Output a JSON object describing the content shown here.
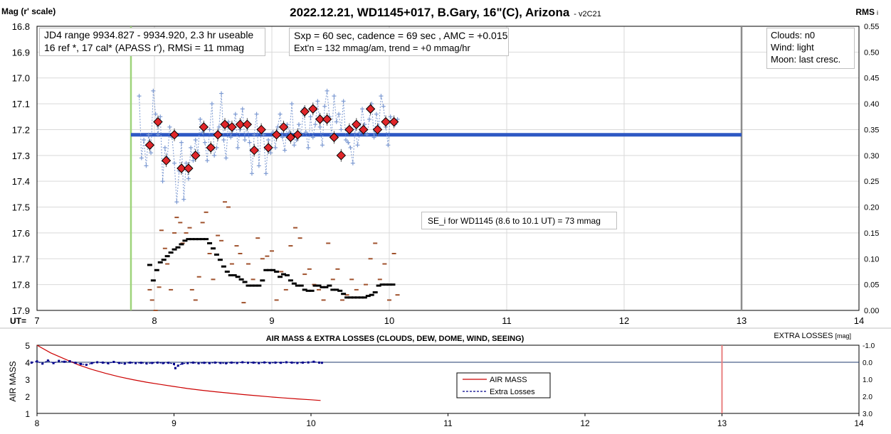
{
  "header": {
    "title": "2022.12.21, WD1145+017, B.Gary, 16\"(C), Arizona",
    "version": "- v2C21",
    "left_label": "Mag (r' scale)",
    "right_label": "RMS",
    "right_label_suffix": "i"
  },
  "info_boxes": {
    "jd": [
      "JD4 range 9934.827 - 9934.920, 2.3 hr useable",
      "16 ref *, 17 cal*  (APASS r'), RMSi = 11 mmag"
    ],
    "exposure": [
      "Sxp = 60 sec, cadence = 69 sec , AMC = +0.015",
      "Ext'n = 132 mmag/am, trend = +0 mmag/hr"
    ],
    "conditions": [
      "Clouds: n0",
      "Wind:  light",
      "Moon:  last cresc."
    ],
    "se": "SE_i for WD1145 (8.6 to 10.1 UT) = 73 mmag"
  },
  "bottom_panel": {
    "title": "AIR MASS & EXTRA LOSSES (CLOUDS, DEW, DOME, WIND, SEEING)",
    "left_label": "AIR MASS",
    "right_label": "EXTRA LOSSES",
    "right_label_unit": "[mag]",
    "legend": [
      "AIR MASS",
      "Extra Losses"
    ]
  },
  "colors": {
    "raw": "#7d9ad2",
    "binned": "#e0262a",
    "mean": "#2e58c4",
    "rms_binned": "#000000",
    "rms_raw": "#a0522d",
    "start_line": "#9ed47a",
    "end_line": "#8c8c8c",
    "airmass": "#cc0000",
    "extra": "#00008b"
  },
  "chart_data": [
    {
      "type": "scatter",
      "title": "2022.12.21, WD1145+017, B.Gary, 16\"(C), Arizona",
      "xlabel": "UT=",
      "ylabel": "Mag (r' scale)",
      "y2label": "RMS",
      "xlim": [
        7,
        14
      ],
      "ylim": [
        16.8,
        17.9
      ],
      "y_reversed": true,
      "y2lim": [
        0.0,
        0.55
      ],
      "xticks": [
        "7",
        "8",
        "9",
        "10",
        "11",
        "12",
        "13",
        "14"
      ],
      "yticks": [
        "16.8",
        "16.9",
        "17.0",
        "17.1",
        "17.2",
        "17.3",
        "17.4",
        "17.5",
        "17.6",
        "17.7",
        "17.8",
        "17.9"
      ],
      "y2ticks": [
        "0.55",
        "0.50",
        "0.45",
        "0.40",
        "0.35",
        "0.30",
        "0.25",
        "0.20",
        "0.15",
        "0.10",
        "0.05",
        "0.00"
      ],
      "grid": true,
      "vertical_lines": [
        {
          "x": 7.8
        },
        {
          "x": 13.0
        }
      ],
      "mean_mag": 17.22,
      "series": [
        {
          "x": [
            7.87,
            7.89,
            7.91,
            7.93,
            7.95,
            7.97,
            7.99,
            8.01,
            8.03,
            8.05,
            8.07,
            8.09,
            8.11,
            8.13,
            8.15,
            8.17,
            8.19,
            8.21,
            8.23,
            8.25,
            8.27,
            8.29,
            8.31,
            8.33,
            8.35,
            8.37,
            8.39,
            8.41,
            8.43,
            8.45,
            8.47,
            8.49,
            8.51,
            8.53,
            8.55,
            8.57,
            8.59,
            8.61,
            8.63,
            8.65,
            8.67,
            8.69,
            8.71,
            8.73,
            8.75,
            8.77,
            8.79,
            8.81,
            8.83,
            8.85,
            8.87,
            8.89,
            8.91,
            8.93,
            8.95,
            8.97,
            8.99,
            9.01,
            9.03,
            9.05,
            9.07,
            9.09,
            9.11,
            9.13,
            9.15,
            9.17,
            9.19,
            9.21,
            9.23,
            9.25,
            9.27,
            9.29,
            9.31,
            9.33,
            9.35,
            9.37,
            9.39,
            9.41,
            9.43,
            9.45,
            9.47,
            9.49,
            9.51,
            9.53,
            9.55,
            9.57,
            9.59,
            9.61,
            9.63,
            9.65,
            9.67,
            9.69,
            9.71,
            9.73,
            9.75,
            9.77,
            9.79,
            9.81,
            9.83,
            9.85,
            9.87,
            9.89,
            9.91,
            9.93,
            9.95,
            9.97,
            9.99,
            10.01,
            10.03,
            10.05,
            10.07
          ],
          "y": [
            17.07,
            17.31,
            17.24,
            17.34,
            17.22,
            17.29,
            17.05,
            17.14,
            17.22,
            17.15,
            17.4,
            17.27,
            17.31,
            17.19,
            17.23,
            17.33,
            17.48,
            17.36,
            17.25,
            17.47,
            17.33,
            17.39,
            17.27,
            17.32,
            17.24,
            17.29,
            17.16,
            17.21,
            17.25,
            17.32,
            17.2,
            17.1,
            17.3,
            17.27,
            17.19,
            17.06,
            17.24,
            17.31,
            17.17,
            17.23,
            17.2,
            17.14,
            17.27,
            17.2,
            17.12,
            17.24,
            17.18,
            17.25,
            17.37,
            17.22,
            17.14,
            17.34,
            17.2,
            17.22,
            17.37,
            17.24,
            17.29,
            17.21,
            17.27,
            17.19,
            17.14,
            17.23,
            17.28,
            17.18,
            17.21,
            17.1,
            17.26,
            17.24,
            17.18,
            17.22,
            17.12,
            17.21,
            17.27,
            17.15,
            17.23,
            17.18,
            17.09,
            17.19,
            17.26,
            17.11,
            17.05,
            17.15,
            17.22,
            17.07,
            17.17,
            17.14,
            17.2,
            17.09,
            17.24,
            17.25,
            17.27,
            17.33,
            17.19,
            17.26,
            17.21,
            17.12,
            17.18,
            17.22,
            17.16,
            17.1,
            17.23,
            17.14,
            17.19,
            17.07,
            17.11,
            17.19,
            17.26,
            17.15,
            17.17,
            17.18,
            17.16
          ]
        },
        {
          "x": [
            7.96,
            8.03,
            8.1,
            8.17,
            8.23,
            8.29,
            8.35,
            8.42,
            8.48,
            8.54,
            8.6,
            8.66,
            8.73,
            8.79,
            8.85,
            8.91,
            8.97,
            9.04,
            9.1,
            9.16,
            9.22,
            9.28,
            9.35,
            9.41,
            9.47,
            9.53,
            9.59,
            9.66,
            9.72,
            9.78,
            9.84,
            9.9,
            9.97,
            10.04
          ],
          "y": [
            17.26,
            17.17,
            17.32,
            17.22,
            17.35,
            17.35,
            17.3,
            17.19,
            17.27,
            17.22,
            17.18,
            17.19,
            17.18,
            17.18,
            17.28,
            17.2,
            17.27,
            17.22,
            17.19,
            17.23,
            17.22,
            17.13,
            17.12,
            17.16,
            17.16,
            17.23,
            17.3,
            17.2,
            17.18,
            17.2,
            17.12,
            17.2,
            17.17,
            17.17
          ]
        },
        {
          "x": [
            7.96,
            7.99,
            8.02,
            8.05,
            8.08,
            8.11,
            8.14,
            8.17,
            8.2,
            8.23,
            8.26,
            8.29,
            8.32,
            8.35,
            8.38,
            8.41,
            8.44,
            8.47,
            8.5,
            8.53,
            8.56,
            8.59,
            8.62,
            8.65,
            8.68,
            8.71,
            8.74,
            8.77,
            8.8,
            8.83,
            8.86,
            8.89,
            8.92,
            8.95,
            8.98,
            9.01,
            9.04,
            9.07,
            9.1,
            9.13,
            9.16,
            9.19,
            9.22,
            9.25,
            9.28,
            9.31,
            9.34,
            9.37,
            9.4,
            9.43,
            9.46,
            9.49,
            9.52,
            9.55,
            9.58,
            9.61,
            9.64,
            9.67,
            9.7,
            9.73,
            9.76,
            9.79,
            9.82,
            9.85,
            9.88,
            9.91,
            9.94,
            9.97,
            10.0,
            10.03
          ],
          "y": [
            0.088,
            0.058,
            0.078,
            0.093,
            0.098,
            0.105,
            0.112,
            0.118,
            0.122,
            0.128,
            0.135,
            0.138,
            0.138,
            0.138,
            0.138,
            0.138,
            0.138,
            0.13,
            0.12,
            0.108,
            0.098,
            0.085,
            0.075,
            0.068,
            0.068,
            0.065,
            0.06,
            0.055,
            0.048,
            0.048,
            0.048,
            0.048,
            0.058,
            0.078,
            0.078,
            0.078,
            0.075,
            0.065,
            0.07,
            0.068,
            0.058,
            0.052,
            0.048,
            0.048,
            0.04,
            0.038,
            0.038,
            0.048,
            0.048,
            0.045,
            0.045,
            0.048,
            0.04,
            0.04,
            0.038,
            0.032,
            0.025,
            0.025,
            0.025,
            0.025,
            0.025,
            0.025,
            0.028,
            0.03,
            0.035,
            0.048,
            0.05,
            0.05,
            0.05,
            0.05
          ]
        },
        {
          "x": [
            7.96,
            7.98,
            8.01,
            8.04,
            8.06,
            8.09,
            8.11,
            8.14,
            8.17,
            8.19,
            8.22,
            8.24,
            8.27,
            8.3,
            8.32,
            8.35,
            8.38,
            8.41,
            8.44,
            8.47,
            8.5,
            8.54,
            8.57,
            8.6,
            8.63,
            8.66,
            8.7,
            8.73,
            8.76,
            8.8,
            8.84,
            8.88,
            8.92,
            8.96,
            9.0,
            9.04,
            9.08,
            9.12,
            9.16,
            9.2,
            9.24,
            9.28,
            9.32,
            9.36,
            9.4,
            9.44,
            9.48,
            9.52,
            9.56,
            9.6,
            9.64,
            9.68,
            9.72,
            9.76,
            9.8,
            9.84,
            9.88,
            9.92,
            9.96,
            10.0,
            10.04,
            10.07
          ],
          "y": [
            0.04,
            0.02,
            0.0,
            0.045,
            0.155,
            0.12,
            0.09,
            0.04,
            0.15,
            0.18,
            0.17,
            0.13,
            0.15,
            0.16,
            0.04,
            0.02,
            0.065,
            0.17,
            0.19,
            0.11,
            0.06,
            0.145,
            0.135,
            0.21,
            0.2,
            0.09,
            0.125,
            0.11,
            0.015,
            0.09,
            0.06,
            0.14,
            0.1,
            0.105,
            0.115,
            0.02,
            0.075,
            0.04,
            0.125,
            0.16,
            0.14,
            0.07,
            0.08,
            0.05,
            0.04,
            0.02,
            0.13,
            0.06,
            0.08,
            0.02,
            0.03,
            0.06,
            0.04,
            0.025,
            0.05,
            0.1,
            0.13,
            0.06,
            0.09,
            0.02,
            0.11,
            0.03
          ]
        }
      ]
    },
    {
      "type": "line",
      "title": "AIR MASS & EXTRA LOSSES (CLOUDS, DEW, DOME, WIND, SEEING)",
      "xlabel": "",
      "ylabel": "AIR MASS",
      "y2label": "EXTRA LOSSES",
      "xlim": [
        8,
        14
      ],
      "ylim": [
        1,
        5
      ],
      "y2lim": [
        -1.0,
        3.0
      ],
      "y2_reversed": true,
      "xticks": [
        "8",
        "9",
        "10",
        "11",
        "12",
        "13",
        "14"
      ],
      "yticks": [
        "1",
        "2",
        "3",
        "4",
        "5"
      ],
      "y2ticks": [
        "-1.0",
        "0.0",
        "1.0",
        "2.0",
        "3.0"
      ],
      "vertical_lines": [
        {
          "x": 13.0
        }
      ],
      "series": [
        {
          "name": "AIR MASS",
          "x": [
            8.0,
            8.1,
            8.2,
            8.3,
            8.4,
            8.5,
            8.6,
            8.7,
            8.8,
            8.9,
            9.0,
            9.1,
            9.2,
            9.3,
            9.4,
            9.5,
            9.6,
            9.7,
            9.8,
            9.9,
            10.0,
            10.07
          ],
          "y": [
            5.0,
            4.55,
            4.2,
            3.85,
            3.58,
            3.35,
            3.15,
            2.98,
            2.83,
            2.7,
            2.58,
            2.46,
            2.36,
            2.27,
            2.19,
            2.11,
            2.04,
            1.97,
            1.91,
            1.85,
            1.8,
            1.76
          ]
        },
        {
          "name": "Extra Losses",
          "x": [
            7.96,
            8.0,
            8.04,
            8.08,
            8.12,
            8.16,
            8.2,
            8.24,
            8.28,
            8.32,
            8.36,
            8.4,
            8.44,
            8.48,
            8.52,
            8.56,
            8.6,
            8.64,
            8.68,
            8.72,
            8.76,
            8.8,
            8.84,
            8.88,
            8.92,
            8.96,
            9.0,
            9.01,
            9.03,
            9.06,
            9.1,
            9.14,
            9.18,
            9.22,
            9.26,
            9.3,
            9.34,
            9.38,
            9.42,
            9.46,
            9.5,
            9.54,
            9.58,
            9.62,
            9.66,
            9.7,
            9.74,
            9.78,
            9.82,
            9.86,
            9.9,
            9.94,
            9.98,
            10.02,
            10.06,
            10.08
          ],
          "y": [
            0.02,
            -0.05,
            0.08,
            -0.1,
            0.05,
            -0.08,
            -0.03,
            -0.06,
            0.03,
            0.1,
            0.15,
            0.05,
            0.0,
            0.02,
            0.06,
            -0.02,
            0.04,
            0.08,
            0.02,
            0.05,
            0.03,
            0.07,
            0.04,
            0.02,
            0.05,
            0.03,
            0.1,
            0.35,
            0.2,
            0.08,
            0.05,
            0.02,
            0.06,
            0.03,
            0.05,
            0.02,
            0.04,
            0.06,
            0.02,
            0.04,
            0.0,
            0.03,
            0.02,
            0.05,
            0.01,
            0.04,
            0.02,
            0.03,
            0.0,
            0.02,
            0.04,
            0.02,
            0.01,
            -0.03,
            0.02,
            0.03
          ]
        }
      ]
    }
  ]
}
